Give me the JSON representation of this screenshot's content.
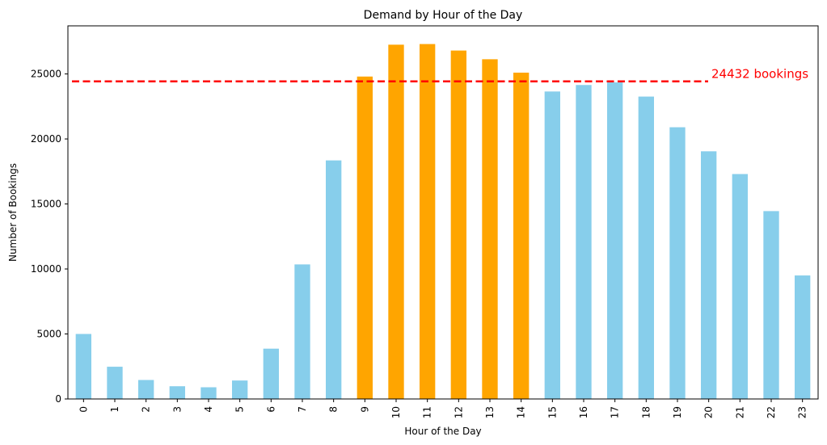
{
  "chart_data": {
    "type": "bar",
    "title": "Demand by Hour of the Day",
    "xlabel": "Hour of the Day",
    "ylabel": "Number of Bookings",
    "categories": [
      "0",
      "1",
      "2",
      "3",
      "4",
      "5",
      "6",
      "7",
      "8",
      "9",
      "10",
      "11",
      "12",
      "13",
      "14",
      "15",
      "16",
      "17",
      "18",
      "19",
      "20",
      "21",
      "22",
      "23"
    ],
    "values": [
      5000,
      2480,
      1460,
      980,
      900,
      1420,
      3870,
      10350,
      18350,
      24800,
      27250,
      27300,
      26800,
      26130,
      25100,
      23650,
      24150,
      24350,
      23260,
      20900,
      19050,
      17300,
      14450,
      9500
    ],
    "ylim": [
      0,
      28700
    ],
    "yticks": [
      0,
      5000,
      10000,
      15000,
      20000,
      25000
    ],
    "grid": false,
    "highlighted_categories": [
      "9",
      "10",
      "11",
      "12",
      "13",
      "14"
    ],
    "colors": {
      "bar": "#87CEEB",
      "highlight": "#FFA500",
      "reference_line": "#FF0000"
    },
    "reference_line": {
      "value": 24432,
      "label": "24432 bookings",
      "style": "dashed"
    }
  }
}
